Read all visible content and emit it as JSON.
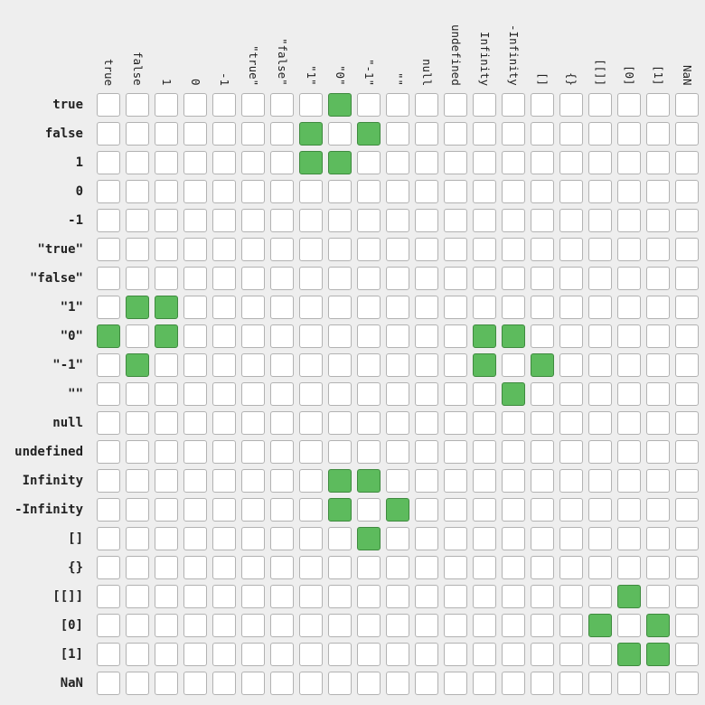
{
  "chart_data": {
    "type": "heatmap",
    "title": "",
    "xlabel": "",
    "ylabel": "",
    "colors": {
      "on": "#5dbb5d",
      "off": "#ffffff",
      "background": "#eeeeee"
    },
    "columns": [
      "true",
      "false",
      "1",
      "0",
      "-1",
      "\"true\"",
      "\"false\"",
      "\"1\"",
      "\"0\"",
      "\"-1\"",
      "\"\"",
      "null",
      "undefined",
      "Infinity",
      "-Infinity",
      "[]",
      "{}",
      "[[]]",
      "[0]",
      "[1]",
      "NaN"
    ],
    "rows": [
      "true",
      "false",
      "1",
      "0",
      "-1",
      "\"true\"",
      "\"false\"",
      "\"1\"",
      "\"0\"",
      "\"-1\"",
      "\"\"",
      "null",
      "undefined",
      "Infinity",
      "-Infinity",
      "[]",
      "{}",
      "[[]]",
      "[0]",
      "[1]",
      "NaN"
    ],
    "matrix": [
      [
        0,
        0,
        0,
        0,
        0,
        0,
        0,
        0,
        1,
        0,
        0,
        0,
        0,
        0,
        0,
        0,
        0,
        0,
        0,
        0,
        0
      ],
      [
        0,
        0,
        0,
        0,
        0,
        0,
        0,
        1,
        0,
        1,
        0,
        0,
        0,
        0,
        0,
        0,
        0,
        0,
        0,
        0,
        0
      ],
      [
        0,
        0,
        0,
        0,
        0,
        0,
        0,
        1,
        1,
        0,
        0,
        0,
        0,
        0,
        0,
        0,
        0,
        0,
        0,
        0,
        0
      ],
      [
        0,
        0,
        0,
        0,
        0,
        0,
        0,
        0,
        0,
        0,
        0,
        0,
        0,
        0,
        0,
        0,
        0,
        0,
        0,
        0,
        0
      ],
      [
        0,
        0,
        0,
        0,
        0,
        0,
        0,
        0,
        0,
        0,
        0,
        0,
        0,
        0,
        0,
        0,
        0,
        0,
        0,
        0,
        0
      ],
      [
        0,
        0,
        0,
        0,
        0,
        0,
        0,
        0,
        0,
        0,
        0,
        0,
        0,
        0,
        0,
        0,
        0,
        0,
        0,
        0,
        0
      ],
      [
        0,
        0,
        0,
        0,
        0,
        0,
        0,
        0,
        0,
        0,
        0,
        0,
        0,
        0,
        0,
        0,
        0,
        0,
        0,
        0,
        0
      ],
      [
        0,
        1,
        1,
        0,
        0,
        0,
        0,
        0,
        0,
        0,
        0,
        0,
        0,
        0,
        0,
        0,
        0,
        0,
        0,
        0,
        0
      ],
      [
        1,
        0,
        1,
        0,
        0,
        0,
        0,
        0,
        0,
        0,
        0,
        0,
        0,
        1,
        1,
        0,
        0,
        0,
        0,
        0,
        0
      ],
      [
        0,
        1,
        0,
        0,
        0,
        0,
        0,
        0,
        0,
        0,
        0,
        0,
        0,
        1,
        0,
        1,
        0,
        0,
        0,
        0,
        0
      ],
      [
        0,
        0,
        0,
        0,
        0,
        0,
        0,
        0,
        0,
        0,
        0,
        0,
        0,
        0,
        1,
        0,
        0,
        0,
        0,
        0,
        0
      ],
      [
        0,
        0,
        0,
        0,
        0,
        0,
        0,
        0,
        0,
        0,
        0,
        0,
        0,
        0,
        0,
        0,
        0,
        0,
        0,
        0,
        0
      ],
      [
        0,
        0,
        0,
        0,
        0,
        0,
        0,
        0,
        0,
        0,
        0,
        0,
        0,
        0,
        0,
        0,
        0,
        0,
        0,
        0,
        0
      ],
      [
        0,
        0,
        0,
        0,
        0,
        0,
        0,
        0,
        1,
        1,
        0,
        0,
        0,
        0,
        0,
        0,
        0,
        0,
        0,
        0,
        0
      ],
      [
        0,
        0,
        0,
        0,
        0,
        0,
        0,
        0,
        1,
        0,
        1,
        0,
        0,
        0,
        0,
        0,
        0,
        0,
        0,
        0,
        0
      ],
      [
        0,
        0,
        0,
        0,
        0,
        0,
        0,
        0,
        0,
        1,
        0,
        0,
        0,
        0,
        0,
        0,
        0,
        0,
        0,
        0,
        0
      ],
      [
        0,
        0,
        0,
        0,
        0,
        0,
        0,
        0,
        0,
        0,
        0,
        0,
        0,
        0,
        0,
        0,
        0,
        0,
        0,
        0,
        0
      ],
      [
        0,
        0,
        0,
        0,
        0,
        0,
        0,
        0,
        0,
        0,
        0,
        0,
        0,
        0,
        0,
        0,
        0,
        0,
        1,
        0,
        0
      ],
      [
        0,
        0,
        0,
        0,
        0,
        0,
        0,
        0,
        0,
        0,
        0,
        0,
        0,
        0,
        0,
        0,
        0,
        1,
        0,
        1,
        0
      ],
      [
        0,
        0,
        0,
        0,
        0,
        0,
        0,
        0,
        0,
        0,
        0,
        0,
        0,
        0,
        0,
        0,
        0,
        0,
        1,
        1,
        0
      ],
      [
        0,
        0,
        0,
        0,
        0,
        0,
        0,
        0,
        0,
        0,
        0,
        0,
        0,
        0,
        0,
        0,
        0,
        0,
        0,
        0,
        0
      ]
    ]
  }
}
